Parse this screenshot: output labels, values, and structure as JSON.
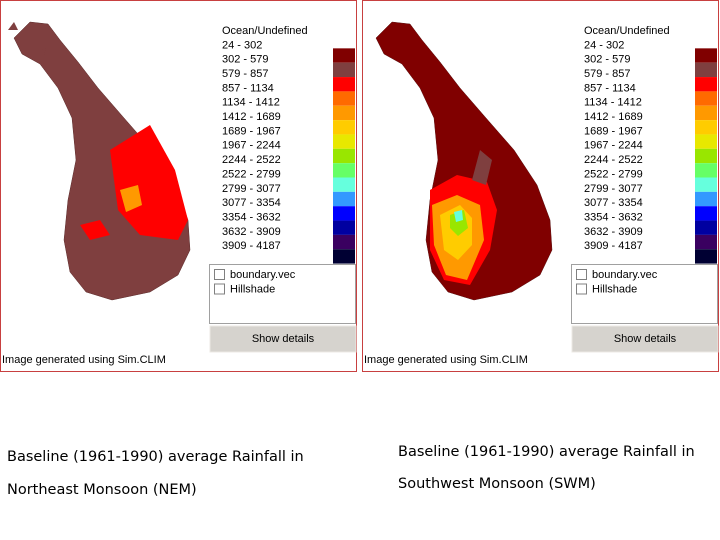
{
  "panels": [
    {
      "legend": [
        {
          "label": "Ocean/Undefined",
          "color": "#ffffff"
        },
        {
          "label": "24 - 302",
          "color": "#800000"
        },
        {
          "label": "302 - 579",
          "color": "#7f3f3f"
        },
        {
          "label": "579 - 857",
          "color": "#ff0000"
        },
        {
          "label": "857 - 1134",
          "color": "#ff6a00"
        },
        {
          "label": "1134 - 1412",
          "color": "#ff9900"
        },
        {
          "label": "1412 - 1689",
          "color": "#ffcc00"
        },
        {
          "label": "1689 - 1967",
          "color": "#e8e800"
        },
        {
          "label": "1967 - 2244",
          "color": "#99e600"
        },
        {
          "label": "2244 - 2522",
          "color": "#66ff66"
        },
        {
          "label": "2522 - 2799",
          "color": "#66ffdd"
        },
        {
          "label": "2799 - 3077",
          "color": "#3399ff"
        },
        {
          "label": "3077 - 3354",
          "color": "#0000ff"
        },
        {
          "label": "3354 - 3632",
          "color": "#0000a0"
        },
        {
          "label": "3632 - 3909",
          "color": "#3a0060"
        },
        {
          "label": "3909 - 4187",
          "color": "#000033"
        }
      ],
      "layers": [
        "boundary.vec",
        "Hillshade"
      ],
      "button": "Show details",
      "credit": "Image generated using Sim.CLIM",
      "caption": [
        "Baseline (1961-1990) average Rainfall in",
        "Northeast Monsoon (NEM)"
      ]
    },
    {
      "legend": [
        {
          "label": "Ocean/Undefined",
          "color": "#ffffff"
        },
        {
          "label": "24 - 302",
          "color": "#800000"
        },
        {
          "label": "302 - 579",
          "color": "#7f3f3f"
        },
        {
          "label": "579 - 857",
          "color": "#ff0000"
        },
        {
          "label": "857 - 1134",
          "color": "#ff6a00"
        },
        {
          "label": "1134 - 1412",
          "color": "#ff9900"
        },
        {
          "label": "1412 - 1689",
          "color": "#ffcc00"
        },
        {
          "label": "1689 - 1967",
          "color": "#e8e800"
        },
        {
          "label": "1967 - 2244",
          "color": "#99e600"
        },
        {
          "label": "2244 - 2522",
          "color": "#66ff66"
        },
        {
          "label": "2522 - 2799",
          "color": "#66ffdd"
        },
        {
          "label": "2799 - 3077",
          "color": "#3399ff"
        },
        {
          "label": "3077 - 3354",
          "color": "#0000ff"
        },
        {
          "label": "3354 - 3632",
          "color": "#0000a0"
        },
        {
          "label": "3632 - 3909",
          "color": "#3a0060"
        },
        {
          "label": "3909 - 4187",
          "color": "#000033"
        }
      ],
      "layers": [
        "boundary.vec",
        "Hillshade"
      ],
      "button": "Show details",
      "credit": "Image generated using Sim.CLIM",
      "caption": [
        "Baseline (1961-1990) average Rainfall in",
        "Southwest Monsoon (SWM)"
      ]
    }
  ]
}
